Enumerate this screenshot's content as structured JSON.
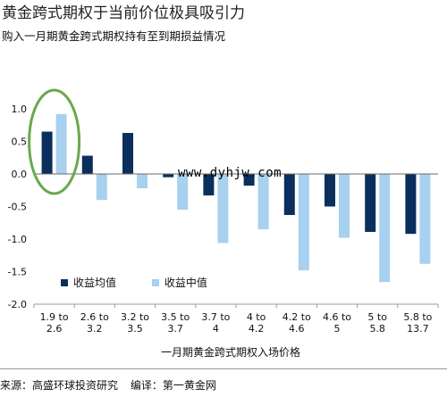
{
  "header": {
    "title": "黄金跨式期权于当前价位极具吸引力",
    "subtitle": "购入一月期黄金跨式期权持有至到期损益情况"
  },
  "watermark": "www.dyhjw.com",
  "footer": {
    "source": "来源：高盛环球投资研究",
    "editor": "编译：第一黄金网"
  },
  "colors": {
    "mean": "#0b2f5c",
    "median": "#a8d0ef",
    "highlight_circle": "#6aa84f"
  },
  "chart_data": {
    "type": "bar",
    "title": "黄金跨式期权于当前价位极具吸引力",
    "subtitle": "购入一月期黄金跨式期权持有至到期损益情况",
    "xlabel": "一月期黄金跨式期权入场价格",
    "ylabel": "",
    "ylim": [
      -2.0,
      1.0
    ],
    "yticks": [
      "1.0",
      "0.5",
      "0.0",
      "-0.5",
      "-1.0",
      "-1.5",
      "-2.0"
    ],
    "categories": [
      "1.9 to 2.6",
      "2.6 to 3.2",
      "3.2 to 3.5",
      "3.5 to 3.7",
      "3.7 to 4",
      "4 to 4.2",
      "4.2 to 4.6",
      "4.6 to 5",
      "5 to 5.8",
      "5.8 to 13.7"
    ],
    "category_lines": [
      [
        "1.9 to",
        "2.6"
      ],
      [
        "2.6 to",
        "3.2"
      ],
      [
        "3.2 to",
        "3.5"
      ],
      [
        "3.5 to",
        "3.7"
      ],
      [
        "3.7 to",
        "4"
      ],
      [
        "4 to",
        "4.2"
      ],
      [
        "4.2 to",
        "4.6"
      ],
      [
        "4.6 to",
        "5"
      ],
      [
        "5 to",
        "5.8"
      ],
      [
        "5.8 to",
        "13.7"
      ]
    ],
    "series": [
      {
        "name": "收益均值",
        "values": [
          0.65,
          0.28,
          0.63,
          -0.05,
          -0.33,
          -0.18,
          -0.63,
          -0.5,
          -0.89,
          -0.92
        ]
      },
      {
        "name": "收益中值",
        "values": [
          0.92,
          -0.4,
          -0.22,
          -0.55,
          -1.06,
          -0.85,
          -1.48,
          -0.98,
          -1.66,
          -1.38
        ]
      }
    ],
    "legend_position": "lower-left",
    "grid": false,
    "highlighted_category": "1.9 to 2.6"
  }
}
